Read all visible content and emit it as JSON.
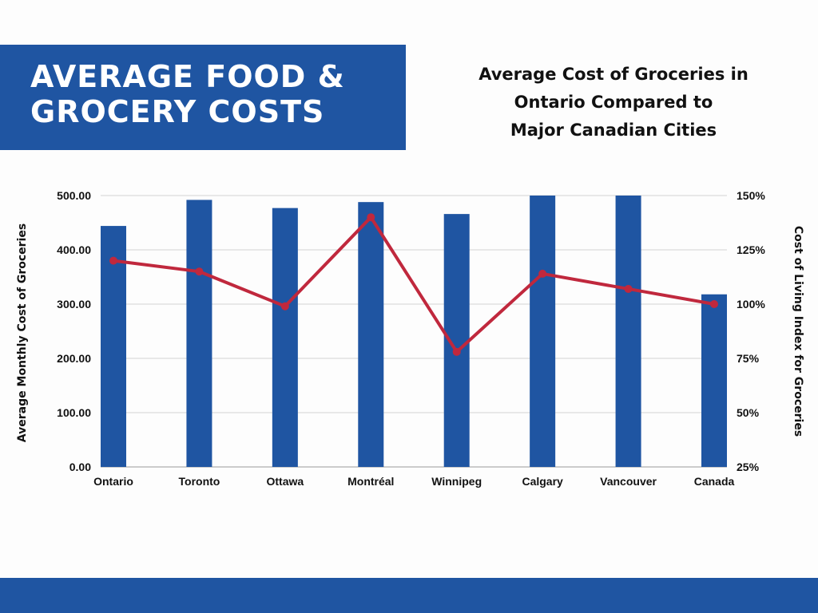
{
  "banner": {
    "title_line1": "AVERAGE FOOD &",
    "title_line2": "GROCERY COSTS"
  },
  "colors": {
    "brand_blue": "#1f55a2",
    "bar_color": "#1f55a2",
    "line_color": "#c0283d"
  },
  "chart_data": {
    "type": "bar",
    "title_lines": [
      "Average Cost of Groceries in",
      "Ontario Compared to",
      "Major Canadian Cities"
    ],
    "categories": [
      "Ontario",
      "Toronto",
      "Ottawa",
      "Montréal",
      "Winnipeg",
      "Calgary",
      "Vancouver",
      "Canada"
    ],
    "series": [
      {
        "type": "bar",
        "axis": "left",
        "values": [
          444,
          492,
          477,
          488,
          466,
          500,
          500,
          318
        ]
      },
      {
        "type": "line",
        "axis": "right",
        "values": [
          120,
          115,
          99,
          140,
          78,
          114,
          107,
          100
        ]
      }
    ],
    "ylabel": "Average Monthly Cost of Groceries",
    "y2label": "Cost of Living Index for Groceries",
    "ylim": [
      0,
      500
    ],
    "y2lim": [
      25,
      150
    ],
    "yticks": [
      "0.00",
      "100.00",
      "200.00",
      "300.00",
      "400.00",
      "500.00"
    ],
    "y2ticks": [
      "25%",
      "50%",
      "75%",
      "100%",
      "125%",
      "150%"
    ],
    "grid": true,
    "legend": "none"
  }
}
